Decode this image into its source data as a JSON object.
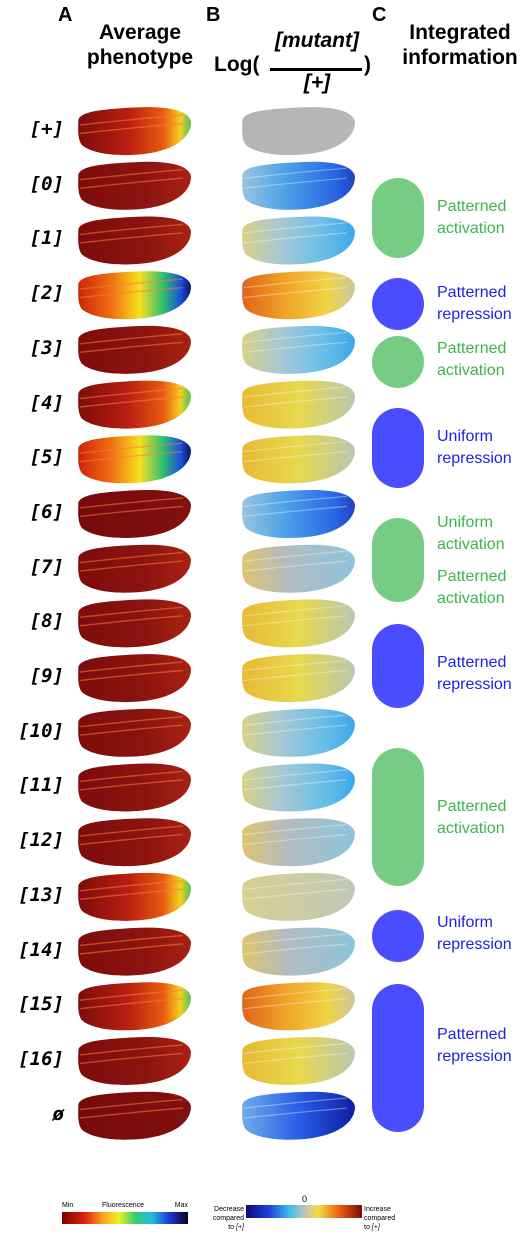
{
  "panels": {
    "a": {
      "letter": "A",
      "title_line1": "Average",
      "title_line2": "phenotype"
    },
    "b": {
      "letter": "B",
      "log_prefix": "Log(",
      "numerator": "[mutant]",
      "denominator": "[+]",
      "log_suffix": ")"
    },
    "c": {
      "letter": "C",
      "title_line1": "Integrated",
      "title_line2": "information"
    }
  },
  "rows": [
    {
      "label": "[+]",
      "phenotype": "mixed",
      "ratio": "neutral"
    },
    {
      "label": "[0]",
      "phenotype": "red",
      "ratio": "blue"
    },
    {
      "label": "[1]",
      "phenotype": "red",
      "ratio": "cyan"
    },
    {
      "label": "[2]",
      "phenotype": "bright",
      "ratio": "orange"
    },
    {
      "label": "[3]",
      "phenotype": "red",
      "ratio": "cyan"
    },
    {
      "label": "[4]",
      "phenotype": "mixed",
      "ratio": "yellow"
    },
    {
      "label": "[5]",
      "phenotype": "bright",
      "ratio": "yellow"
    },
    {
      "label": "[6]",
      "phenotype": "dark",
      "ratio": "blue"
    },
    {
      "label": "[7]",
      "phenotype": "red",
      "ratio": "grey"
    },
    {
      "label": "[8]",
      "phenotype": "red",
      "ratio": "yellow"
    },
    {
      "label": "[9]",
      "phenotype": "red",
      "ratio": "yellow"
    },
    {
      "label": "[10]",
      "phenotype": "red",
      "ratio": "cyan"
    },
    {
      "label": "[11]",
      "phenotype": "red",
      "ratio": "cyan"
    },
    {
      "label": "[12]",
      "phenotype": "red",
      "ratio": "grey"
    },
    {
      "label": "[13]",
      "phenotype": "mixed",
      "ratio": "paleyellow"
    },
    {
      "label": "[14]",
      "phenotype": "red",
      "ratio": "grey"
    },
    {
      "label": "[15]",
      "phenotype": "mixed",
      "ratio": "orange"
    },
    {
      "label": "[16]",
      "phenotype": "red",
      "ratio": "yellow"
    },
    {
      "label": "ø",
      "phenotype": "dark",
      "ratio": "darkblue"
    }
  ],
  "integrated": [
    {
      "kind": "activation",
      "lines": [
        "Patterned",
        "activation"
      ]
    },
    {
      "kind": "repression",
      "lines": [
        "Patterned",
        "repression"
      ]
    },
    {
      "kind": "activation",
      "lines": [
        "Patterned",
        "activation"
      ]
    },
    {
      "kind": "repression",
      "lines": [
        "Uniform",
        "repression"
      ]
    },
    {
      "kind": "activation",
      "lines": [
        "Uniform",
        "activation"
      ]
    },
    {
      "kind": "activation",
      "lines": [
        "Patterned",
        "activation"
      ]
    },
    {
      "kind": "repression",
      "lines": [
        "Patterned",
        "repression"
      ]
    },
    {
      "kind": "activation",
      "lines": [
        "Patterned",
        "activation"
      ]
    },
    {
      "kind": "repression",
      "lines": [
        "Uniform",
        "repression"
      ]
    },
    {
      "kind": "repression",
      "lines": [
        "Patterned",
        "repression"
      ]
    }
  ],
  "legend_a": {
    "min": "Min",
    "label": "Fluorescence",
    "max": "Max"
  },
  "legend_b": {
    "zero": "0",
    "left_line1": "Decrease",
    "left_line2": "compared",
    "left_line3": "to",
    "left_ref": "[+]",
    "right_line1": "Increase",
    "right_line2": "compared",
    "right_line3": "to",
    "right_ref": "[+]"
  },
  "colors": {
    "activation": "#77cc84",
    "repression": "#4a4cff",
    "activation_text": "#3cb64c",
    "repression_text": "#1f1fe6"
  }
}
